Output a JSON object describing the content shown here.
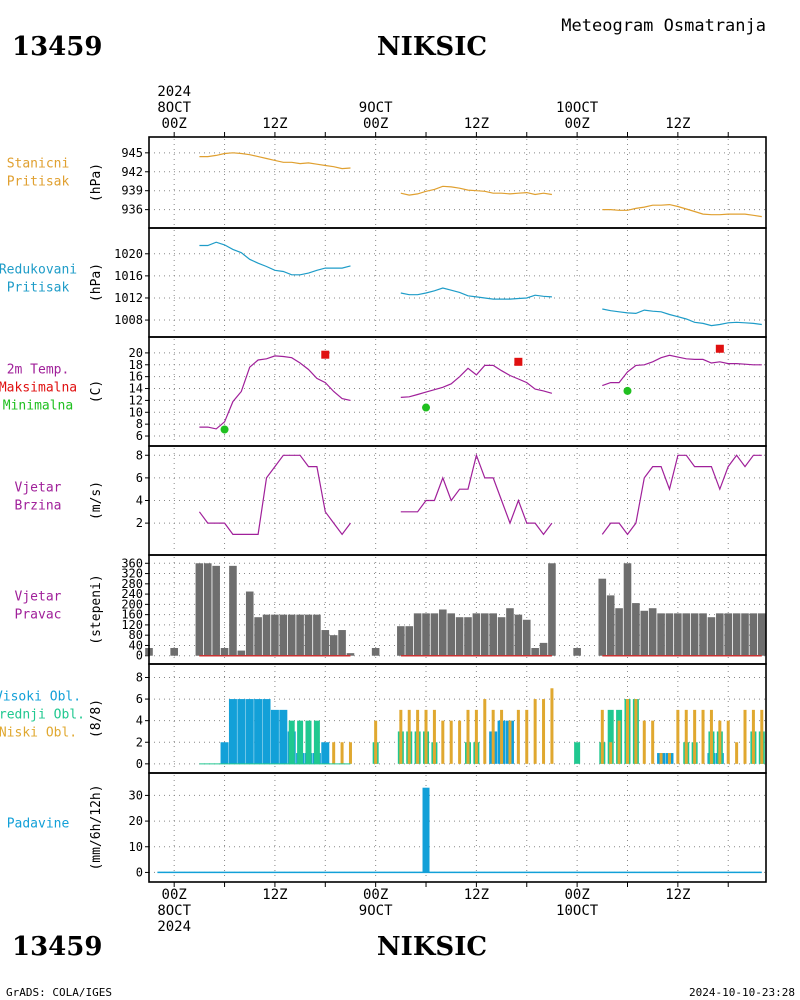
{
  "header": {
    "station_id": "13459",
    "station_name": "NIKSIC",
    "title": "Meteogram Osmatranja"
  },
  "footer": {
    "credit": "GrADS: COLA/IGES",
    "timestamp": "2024-10-10-23:28"
  },
  "time_axis": {
    "top_labels": [
      {
        "t": 0,
        "lines": [
          "2024",
          "8OCT",
          "00Z"
        ]
      },
      {
        "t": 12,
        "lines": [
          "12Z"
        ]
      },
      {
        "t": 24,
        "lines": [
          "9OCT",
          "00Z"
        ]
      },
      {
        "t": 36,
        "lines": [
          "12Z"
        ]
      },
      {
        "t": 48,
        "lines": [
          "10OCT",
          "00Z"
        ]
      },
      {
        "t": 60,
        "lines": [
          "12Z"
        ]
      }
    ],
    "bottom_labels": [
      {
        "t": 0,
        "lines": [
          "00Z",
          "8OCT",
          "2024"
        ]
      },
      {
        "t": 12,
        "lines": [
          "12Z"
        ]
      },
      {
        "t": 24,
        "lines": [
          "00Z",
          "9OCT"
        ]
      },
      {
        "t": 36,
        "lines": [
          "12Z"
        ]
      },
      {
        "t": 48,
        "lines": [
          "00Z",
          "10OCT"
        ]
      },
      {
        "t": 60,
        "lines": [
          "12Z"
        ]
      }
    ],
    "range_hours": [
      -3,
      70.5
    ],
    "grid_hours": [
      0,
      6,
      12,
      18,
      24,
      30,
      36,
      42,
      48,
      54,
      60,
      66
    ],
    "unit": "hours since 2024-10-08 00Z"
  },
  "colors": {
    "station_pressure": "#e0a030",
    "reduced_pressure": "#1e9cc8",
    "temperature": "#a0209a",
    "tmax": "#e01010",
    "tmin": "#20c020",
    "wind": "#a0209a",
    "wind_dir": "#6e6e6e",
    "high_cloud": "#12a0d8",
    "mid_cloud": "#20c890",
    "low_cloud": "#e0a830",
    "precip": "#12a0d8",
    "baseline": "#c83232"
  },
  "chart_data": [
    {
      "type": "line",
      "panel": "station_pressure",
      "label": [
        "Stanicni",
        "Pritisak"
      ],
      "ylabel": "(hPa)",
      "yticks": [
        936,
        939,
        942,
        945
      ],
      "ylim": [
        934.2,
        946.4
      ],
      "series": [
        {
          "x": [
            3,
            4,
            5,
            6,
            7,
            8,
            9,
            10,
            11,
            12,
            13,
            14,
            15,
            16,
            17,
            18,
            19,
            20,
            21
          ],
          "y": [
            944.4,
            944.4,
            944.6,
            944.9,
            945.0,
            944.9,
            944.7,
            944.4,
            944.1,
            943.8,
            943.5,
            943.5,
            943.3,
            943.4,
            943.2,
            943.0,
            942.8,
            942.5,
            942.6
          ]
        },
        {
          "x": [
            27,
            28,
            29,
            30,
            31,
            32,
            33,
            34,
            35,
            36,
            37,
            38,
            39,
            40,
            41,
            42,
            43,
            44,
            45
          ],
          "y": [
            938.6,
            938.3,
            938.5,
            938.9,
            939.2,
            939.7,
            939.6,
            939.4,
            939.1,
            939.0,
            938.9,
            938.6,
            938.6,
            938.5,
            938.6,
            938.7,
            938.4,
            938.6,
            938.4
          ]
        },
        {
          "x": [
            51,
            52,
            53,
            54,
            55,
            56,
            57,
            58,
            59,
            60,
            61,
            62,
            63,
            64,
            65,
            66,
            67,
            68,
            69,
            70
          ],
          "y": [
            936.0,
            936.0,
            935.9,
            935.9,
            936.2,
            936.4,
            936.7,
            936.7,
            936.8,
            936.5,
            936.1,
            935.7,
            935.3,
            935.2,
            935.2,
            935.3,
            935.3,
            935.3,
            935.1,
            934.9
          ]
        }
      ]
    },
    {
      "type": "line",
      "panel": "reduced_pressure",
      "label": [
        "Redukovani",
        "Pritisak"
      ],
      "ylabel": "(hPa)",
      "yticks": [
        1008,
        1012,
        1016,
        1020
      ],
      "ylim": [
        1006.2,
        1023.4
      ],
      "series": [
        {
          "x": [
            3,
            4,
            5,
            6,
            7,
            8,
            9,
            10,
            11,
            12,
            13,
            14,
            15,
            16,
            17,
            18,
            19,
            20,
            21
          ],
          "y": [
            1021.5,
            1021.5,
            1022.1,
            1021.6,
            1020.8,
            1020.2,
            1019.0,
            1018.3,
            1017.7,
            1017.0,
            1016.8,
            1016.2,
            1016.2,
            1016.5,
            1017.0,
            1017.4,
            1017.4,
            1017.4,
            1017.8
          ]
        },
        {
          "x": [
            27,
            28,
            29,
            30,
            31,
            32,
            33,
            34,
            35,
            36,
            37,
            38,
            39,
            40,
            41,
            42,
            43,
            44,
            45
          ],
          "y": [
            1012.9,
            1012.6,
            1012.6,
            1012.9,
            1013.3,
            1013.8,
            1013.4,
            1013.0,
            1012.4,
            1012.2,
            1012.0,
            1011.8,
            1011.8,
            1011.8,
            1011.9,
            1012.0,
            1012.5,
            1012.3,
            1012.2
          ]
        },
        {
          "x": [
            51,
            52,
            53,
            54,
            55,
            56,
            57,
            58,
            59,
            60,
            61,
            62,
            63,
            64,
            65,
            66,
            67,
            68,
            69,
            70
          ],
          "y": [
            1010.0,
            1009.7,
            1009.5,
            1009.3,
            1009.2,
            1009.8,
            1009.6,
            1009.5,
            1009.0,
            1008.6,
            1008.2,
            1007.6,
            1007.4,
            1007.0,
            1007.2,
            1007.5,
            1007.6,
            1007.5,
            1007.4,
            1007.2
          ]
        }
      ]
    },
    {
      "type": "line",
      "panel": "temperature",
      "label": [
        "2m Temp.",
        "Maksimalna",
        "Minimalna"
      ],
      "ylabel": "(C)",
      "yticks": [
        6,
        8,
        10,
        12,
        14,
        16,
        18,
        20
      ],
      "ylim": [
        5.5,
        21.5
      ],
      "series": [
        {
          "x": [
            3,
            4,
            5,
            6,
            7,
            8,
            9,
            10,
            11,
            12,
            13,
            14,
            15,
            16,
            17,
            18,
            19,
            20,
            21
          ],
          "y": [
            7.5,
            7.5,
            7.2,
            8.4,
            11.8,
            13.5,
            17.6,
            18.8,
            19.0,
            19.5,
            19.4,
            19.2,
            18.3,
            17.2,
            15.7,
            15.0,
            13.5,
            12.3,
            12.0
          ]
        },
        {
          "x": [
            27,
            28,
            29,
            30,
            31,
            32,
            33,
            34,
            35,
            36,
            37,
            38,
            39,
            40,
            41,
            42,
            43,
            44,
            45
          ],
          "y": [
            12.5,
            12.6,
            13.0,
            13.4,
            13.8,
            14.2,
            14.8,
            16.0,
            17.4,
            16.3,
            17.9,
            17.9,
            17.0,
            16.2,
            15.6,
            15.0,
            13.9,
            13.6,
            13.2
          ]
        },
        {
          "x": [
            51,
            52,
            53,
            54,
            55,
            56,
            57,
            58,
            59,
            60,
            61,
            62,
            63,
            64,
            65,
            66,
            67,
            68,
            69,
            70
          ],
          "y": [
            14.5,
            15.0,
            15.0,
            16.8,
            17.9,
            18.0,
            18.5,
            19.2,
            19.6,
            19.3,
            19.0,
            18.9,
            18.9,
            18.3,
            18.5,
            18.2,
            18.2,
            18.1,
            18.0,
            18.0
          ]
        }
      ],
      "max_points": [
        {
          "x": 18,
          "y": 19.7
        },
        {
          "x": 41,
          "y": 18.5
        },
        {
          "x": 65,
          "y": 20.7
        }
      ],
      "min_points": [
        {
          "x": 6,
          "y": 7.1
        },
        {
          "x": 30,
          "y": 10.8
        },
        {
          "x": 54,
          "y": 13.6
        }
      ]
    },
    {
      "type": "line",
      "panel": "wind_speed",
      "label": [
        "Vjetar",
        "Brzina"
      ],
      "ylabel": "(m/s)",
      "yticks": [
        2,
        4,
        6,
        8
      ],
      "ylim": [
        -0.2,
        8.2
      ],
      "series": [
        {
          "x": [
            3,
            4,
            5,
            6,
            7,
            8,
            9,
            10,
            11,
            12,
            13,
            14,
            15,
            16,
            17,
            18,
            19,
            20,
            21
          ],
          "y": [
            3,
            2,
            2,
            2,
            1,
            1,
            1,
            1,
            6,
            7,
            8,
            8,
            8,
            7,
            7,
            3,
            2,
            1,
            2
          ]
        },
        {
          "x": [
            27,
            28,
            29,
            30,
            31,
            32,
            33,
            34,
            35,
            36,
            37,
            38,
            39,
            40,
            41,
            42,
            43,
            44,
            45
          ],
          "y": [
            3,
            3,
            3,
            4,
            4,
            6,
            4,
            5,
            5,
            8,
            6,
            6,
            4,
            2,
            4,
            2,
            2,
            1,
            2
          ]
        },
        {
          "x": [
            51,
            52,
            53,
            54,
            55,
            56,
            57,
            58,
            59,
            60,
            61,
            62,
            63,
            64,
            65,
            66,
            67,
            68,
            69,
            70
          ],
          "y": [
            1,
            2,
            2,
            1,
            2,
            6,
            7,
            7,
            5,
            8,
            8,
            7,
            7,
            7,
            5,
            7,
            8,
            7,
            8,
            8
          ]
        }
      ]
    },
    {
      "type": "bar",
      "panel": "wind_direction",
      "label": [
        "Vjetar",
        "Pravac"
      ],
      "ylabel": "(stepeni)",
      "yticks": [
        0,
        40,
        80,
        120,
        160,
        200,
        240,
        280,
        320,
        360
      ],
      "ylim": [
        -5,
        365
      ],
      "x": [
        -3,
        0,
        3,
        4,
        5,
        6,
        7,
        8,
        9,
        10,
        11,
        12,
        13,
        14,
        15,
        16,
        17,
        18,
        19,
        20,
        21,
        24,
        27,
        28,
        29,
        30,
        31,
        32,
        33,
        34,
        35,
        36,
        37,
        38,
        39,
        40,
        41,
        42,
        43,
        44,
        45,
        48,
        51,
        52,
        53,
        54,
        55,
        56,
        57,
        58,
        59,
        60,
        61,
        62,
        63,
        64,
        65,
        66,
        67,
        68,
        69,
        70
      ],
      "values": [
        30,
        30,
        360,
        360,
        350,
        30,
        350,
        20,
        250,
        150,
        160,
        160,
        160,
        160,
        160,
        160,
        160,
        100,
        80,
        100,
        10,
        30,
        115,
        115,
        165,
        165,
        165,
        180,
        165,
        150,
        150,
        165,
        165,
        165,
        150,
        185,
        160,
        140,
        30,
        50,
        360,
        30,
        300,
        235,
        185,
        360,
        205,
        175,
        185,
        165,
        165,
        165,
        165,
        165,
        165,
        150,
        165,
        165,
        165,
        165,
        165,
        165
      ]
    },
    {
      "type": "bar",
      "panel": "clouds",
      "label": [
        "Visoki Obl.",
        "Srednji Obl.",
        "Niski Obl."
      ],
      "ylabel": "(8/8)",
      "yticks": [
        0,
        2,
        4,
        6,
        8
      ],
      "ylim": [
        -0.2,
        8.6
      ],
      "x": [
        3,
        4,
        5,
        6,
        7,
        8,
        9,
        10,
        11,
        12,
        13,
        14,
        15,
        16,
        17,
        18,
        19,
        20,
        21,
        24,
        27,
        28,
        29,
        30,
        31,
        32,
        33,
        34,
        35,
        36,
        37,
        38,
        39,
        40,
        41,
        42,
        43,
        44,
        45,
        48,
        51,
        52,
        53,
        54,
        55,
        56,
        57,
        58,
        59,
        60,
        61,
        62,
        63,
        64,
        65,
        66,
        67,
        68,
        69,
        70
      ],
      "series": [
        {
          "name": "Visoki Obl.",
          "values": [
            0,
            0,
            0,
            2,
            6,
            6,
            6,
            6,
            6,
            5,
            5,
            3,
            1,
            1,
            1,
            2,
            0,
            0,
            0,
            0,
            0,
            0,
            0,
            0,
            0,
            0,
            0,
            0,
            0,
            0,
            0,
            3,
            4,
            4,
            0,
            0,
            0,
            0,
            0,
            0,
            0,
            0,
            0,
            0,
            0,
            0,
            0,
            1,
            1,
            0,
            0,
            0,
            0,
            1,
            1,
            0,
            0,
            0,
            0,
            0
          ]
        },
        {
          "name": "Srednji Obl.",
          "values": [
            0,
            0,
            0,
            0,
            0,
            0,
            0,
            0,
            0,
            0,
            0,
            4,
            4,
            4,
            4,
            0,
            0,
            0,
            0,
            2,
            3,
            3,
            3,
            3,
            2,
            0,
            0,
            0,
            2,
            2,
            0,
            0,
            0,
            0,
            0,
            0,
            0,
            0,
            0,
            2,
            2,
            5,
            5,
            6,
            6,
            0,
            0,
            0,
            0,
            0,
            2,
            2,
            0,
            3,
            3,
            0,
            0,
            0,
            3,
            3
          ]
        },
        {
          "name": "Niski Obl.",
          "values": [
            0,
            0,
            0,
            0,
            0,
            0,
            0,
            0,
            0,
            0,
            0,
            0,
            0,
            0,
            0,
            0,
            2,
            2,
            2,
            4,
            5,
            5,
            5,
            5,
            5,
            4,
            4,
            4,
            5,
            5,
            6,
            5,
            5,
            4,
            5,
            5,
            6,
            6,
            7,
            0,
            5,
            2,
            4,
            6,
            6,
            4,
            4,
            1,
            1,
            5,
            5,
            5,
            5,
            5,
            4,
            4,
            2,
            5,
            5,
            5
          ]
        }
      ]
    },
    {
      "type": "bar",
      "panel": "precipitation",
      "label": [
        "Padavine"
      ],
      "ylabel": "(mm/6h/12h)",
      "yticks": [
        0,
        10,
        20,
        30
      ],
      "ylim": [
        -1,
        36
      ],
      "x": [
        30
      ],
      "values": [
        33
      ]
    }
  ]
}
